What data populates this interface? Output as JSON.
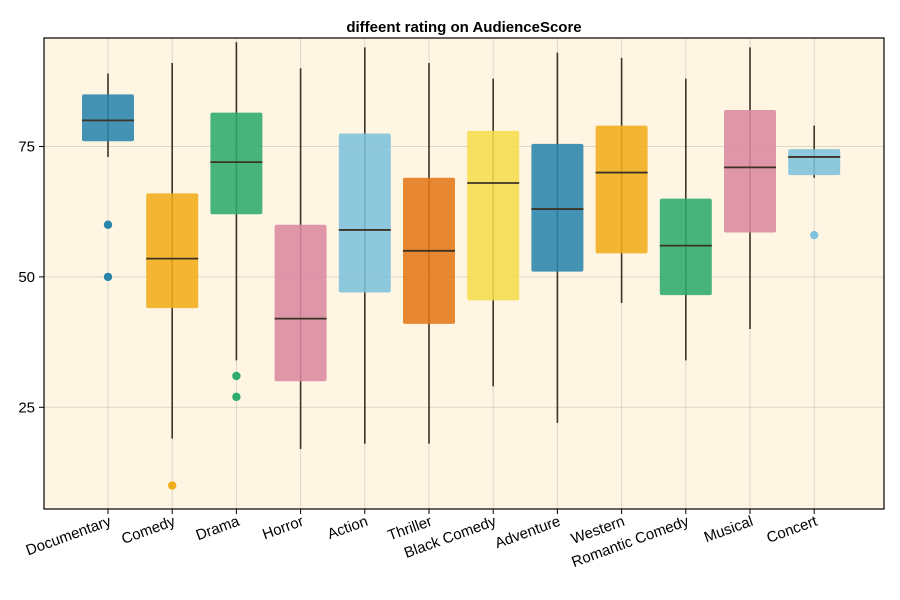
{
  "chart_data": {
    "type": "boxplot",
    "title": "diffeent rating on AudienceScore",
    "xlabel": "",
    "ylabel": "",
    "ylim": [
      5.5,
      95.8
    ],
    "yticks": [
      25,
      50,
      75
    ],
    "grid": true,
    "background_color": "#fff5e3",
    "categories": [
      "Documentary",
      "Comedy",
      "Drama",
      "Horror",
      "Action",
      "Thriller",
      "Black Comedy",
      "Adventure",
      "Western",
      "Romantic Comedy",
      "Musical",
      "Concert"
    ],
    "boxes": [
      {
        "category": "Documentary",
        "whisker_low": 73,
        "q1": 76,
        "median": 80,
        "q3": 85,
        "whisker_high": 89,
        "outliers": [
          60,
          50
        ],
        "color": "#2a85ad"
      },
      {
        "category": "Comedy",
        "whisker_low": 19,
        "q1": 44,
        "median": 53.5,
        "q3": 66,
        "whisker_high": 91,
        "outliers": [
          10
        ],
        "color": "#f0ad1a"
      },
      {
        "category": "Drama",
        "whisker_low": 34,
        "q1": 62,
        "median": 72,
        "q3": 81.5,
        "whisker_high": 95,
        "outliers": [
          31,
          27
        ],
        "color": "#2eac6c"
      },
      {
        "category": "Horror",
        "whisker_low": 17,
        "q1": 30,
        "median": 42,
        "q3": 60,
        "whisker_high": 90,
        "outliers": [],
        "color": "#db89a0"
      },
      {
        "category": "Action",
        "whisker_low": 18,
        "q1": 47,
        "median": 59,
        "q3": 77.5,
        "whisker_high": 94,
        "outliers": [],
        "color": "#7ec2db"
      },
      {
        "category": "Thriller",
        "whisker_low": 18,
        "q1": 41,
        "median": 55,
        "q3": 69,
        "whisker_high": 91,
        "outliers": [],
        "color": "#e57718"
      },
      {
        "category": "Black Comedy",
        "whisker_low": 29,
        "q1": 45.5,
        "median": 68,
        "q3": 78,
        "whisker_high": 88,
        "outliers": [],
        "color": "#f6dc4d"
      },
      {
        "category": "Adventure",
        "whisker_low": 22,
        "q1": 51,
        "median": 63,
        "q3": 75.5,
        "whisker_high": 93,
        "outliers": [],
        "color": "#2a85ad"
      },
      {
        "category": "Western",
        "whisker_low": 45,
        "q1": 54.5,
        "median": 70,
        "q3": 79,
        "whisker_high": 92,
        "outliers": [],
        "color": "#f0ad1a"
      },
      {
        "category": "Romantic Comedy",
        "whisker_low": 34,
        "q1": 46.5,
        "median": 56,
        "q3": 65,
        "whisker_high": 88,
        "outliers": [],
        "color": "#2eac6c"
      },
      {
        "category": "Musical",
        "whisker_low": 40,
        "q1": 58.5,
        "median": 71,
        "q3": 82,
        "whisker_high": 94,
        "outliers": [],
        "color": "#db89a0"
      },
      {
        "category": "Concert",
        "whisker_low": 69,
        "q1": 69.5,
        "median": 73,
        "q3": 74.5,
        "whisker_high": 79,
        "outliers": [
          58
        ],
        "color": "#7ec2db"
      }
    ]
  }
}
